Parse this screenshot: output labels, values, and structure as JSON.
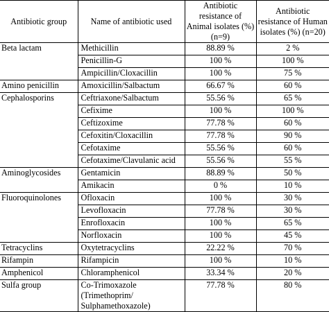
{
  "headers": {
    "group": "Antibiotic group",
    "name": "Name of antibiotic used",
    "animal": "Antibiotic resistance of Animal isolates (%) (n=9)",
    "human": "Antibiotic resistance of Human isolates (%) (n=20)"
  },
  "rows": [
    {
      "group": "Beta lactam",
      "name": "Methicillin",
      "animal": "88.89 %",
      "human": "2 %"
    },
    {
      "group": "",
      "name": "Penicillin-G",
      "animal": "100 %",
      "human": "100 %"
    },
    {
      "group": "",
      "name": "Ampicillin/Cloxacillin",
      "animal": "100 %",
      "human": "75 %"
    },
    {
      "group": "Amino penicillin",
      "name": "Amoxicillin/Salbactum",
      "animal": "66.67 %",
      "human": "60 %"
    },
    {
      "group": "Cephalosporins",
      "name": "Ceftriaxone/Salbactum",
      "animal": "55.56 %",
      "human": "65 %"
    },
    {
      "group": "",
      "name": "Cefixime",
      "animal": "100 %",
      "human": "100 %"
    },
    {
      "group": "",
      "name": "Ceftizoxime",
      "animal": "77.78 %",
      "human": "60 %"
    },
    {
      "group": "",
      "name": "Cefoxitin/Cloxacillin",
      "animal": "77.78 %",
      "human": "90 %"
    },
    {
      "group": "",
      "name": "Cefotaxime",
      "animal": "55.56 %",
      "human": "60 %"
    },
    {
      "group": "",
      "name": "Cefotaxime/Clavulanic acid",
      "animal": "55.56 %",
      "human": "55 %"
    },
    {
      "group": "Aminoglycosides",
      "name": "Gentamicin",
      "animal": "88.89 %",
      "human": "50 %"
    },
    {
      "group": "",
      "name": "Amikacin",
      "animal": "0 %",
      "human": "10 %"
    },
    {
      "group": "Fluoroquinolones",
      "name": "Ofloxacin",
      "animal": "100 %",
      "human": "30 %"
    },
    {
      "group": "",
      "name": "Levofloxacin",
      "animal": "77.78 %",
      "human": "30 %"
    },
    {
      "group": "",
      "name": "Enrofloxacin",
      "animal": "100 %",
      "human": "65 %"
    },
    {
      "group": "",
      "name": "Norfloxacin",
      "animal": "100 %",
      "human": "45 %"
    },
    {
      "group": "Tetracyclins",
      "name": "Oxytetracyclins",
      "animal": "22.22 %",
      "human": "70 %"
    },
    {
      "group": "Rifampin",
      "name": "Rifampicin",
      "animal": "100 %",
      "human": "10 %"
    },
    {
      "group": "Amphenicol",
      "name": "Chloramphenicol",
      "animal": "33.34 %",
      "human": "20 %"
    },
    {
      "group": "Sulfa group",
      "name": "Co-Trimoxazole (Trimethoprim/ Sulphamethoxazole)",
      "animal": "77.78 %",
      "human": "80 %"
    }
  ]
}
